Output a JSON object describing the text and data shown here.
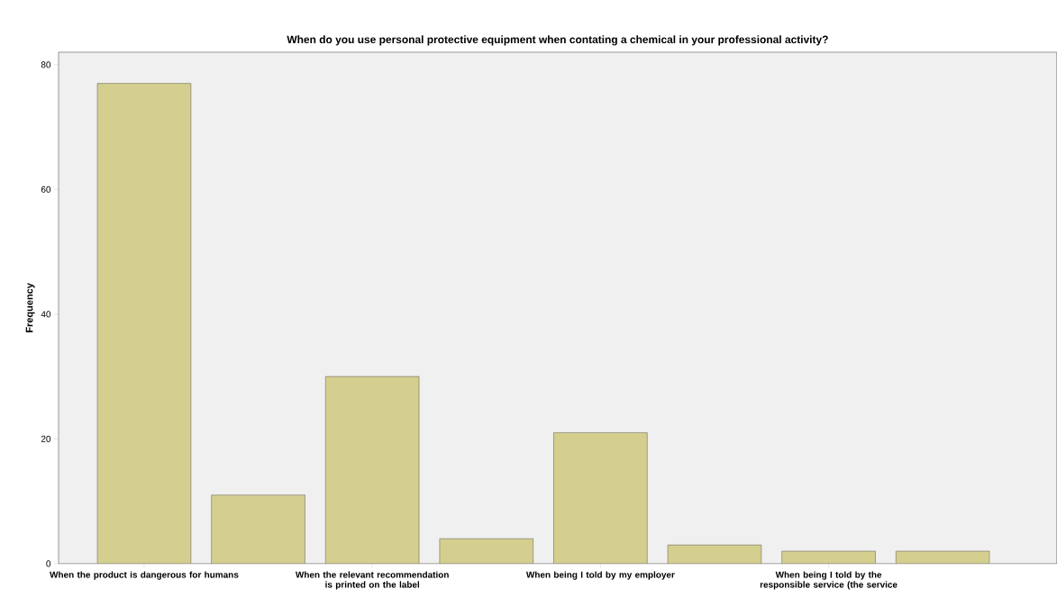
{
  "chart_data": {
    "type": "bar",
    "title": "When do you use personal protective equipment when contating a chemical in your professional activity?",
    "ylabel": "Frequency",
    "categories": [
      "When the product is dangerous for humans",
      null,
      "When the relevant recommendation is  printed on the label",
      null,
      "When being  I told by my employer",
      null,
      "When being I told by the responsible service (the service",
      null
    ],
    "values": [
      77,
      11,
      30,
      4,
      21,
      3,
      2,
      2
    ],
    "color": "#d4cf8f",
    "ylim": [
      0,
      82
    ],
    "yticks": [
      0,
      20,
      40,
      60,
      80
    ],
    "grid": false
  }
}
